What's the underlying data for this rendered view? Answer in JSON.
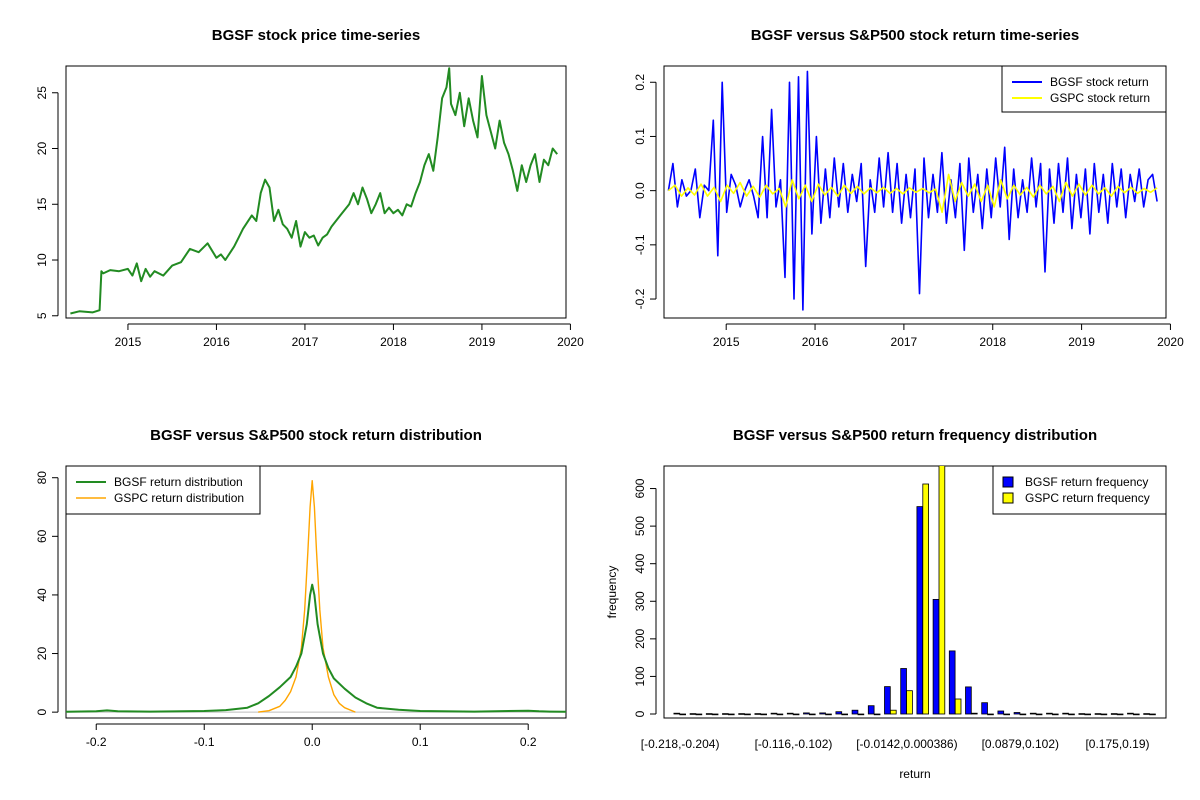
{
  "chart_data": [
    {
      "id": "price",
      "type": "line",
      "title": "BGSF stock price time-series",
      "xlabel": "",
      "ylabel": "",
      "xlim": [
        2014.3,
        2019.95
      ],
      "ylim": [
        4.8,
        27.4
      ],
      "xticks": [
        2015,
        2016,
        2017,
        2018,
        2019,
        2020
      ],
      "xtick_labels": [
        "2015",
        "2016",
        "2017",
        "2018",
        "2019",
        "2020"
      ],
      "yticks": [
        5,
        10,
        15,
        20,
        25
      ],
      "ytick_labels": [
        "5",
        "10",
        "15",
        "20",
        "25"
      ],
      "series": [
        {
          "name": "BGSF",
          "color": "#228B22",
          "x": [
            2014.35,
            2014.45,
            2014.6,
            2014.68,
            2014.7,
            2014.72,
            2014.8,
            2014.9,
            2015.0,
            2015.05,
            2015.1,
            2015.15,
            2015.2,
            2015.25,
            2015.3,
            2015.4,
            2015.5,
            2015.6,
            2015.7,
            2015.8,
            2015.9,
            2016.0,
            2016.05,
            2016.1,
            2016.2,
            2016.25,
            2016.3,
            2016.4,
            2016.45,
            2016.5,
            2016.55,
            2016.6,
            2016.65,
            2016.7,
            2016.75,
            2016.8,
            2016.85,
            2016.9,
            2016.95,
            2017.0,
            2017.05,
            2017.1,
            2017.15,
            2017.2,
            2017.25,
            2017.3,
            2017.4,
            2017.5,
            2017.55,
            2017.6,
            2017.65,
            2017.7,
            2017.75,
            2017.8,
            2017.85,
            2017.9,
            2017.95,
            2018.0,
            2018.05,
            2018.1,
            2018.15,
            2018.2,
            2018.25,
            2018.3,
            2018.35,
            2018.4,
            2018.45,
            2018.5,
            2018.55,
            2018.6,
            2018.63,
            2018.65,
            2018.7,
            2018.75,
            2018.8,
            2018.85,
            2018.9,
            2018.95,
            2019.0,
            2019.05,
            2019.1,
            2019.15,
            2019.2,
            2019.25,
            2019.3,
            2019.35,
            2019.4,
            2019.45,
            2019.5,
            2019.55,
            2019.6,
            2019.65,
            2019.7,
            2019.75,
            2019.8,
            2019.85
          ],
          "values": [
            5.2,
            5.4,
            5.3,
            5.5,
            9.0,
            8.8,
            9.1,
            9.0,
            9.2,
            8.6,
            9.7,
            8.1,
            9.2,
            8.5,
            9.0,
            8.6,
            9.5,
            9.8,
            11.0,
            10.7,
            11.5,
            10.2,
            10.5,
            10.0,
            11.2,
            12.0,
            12.8,
            14.0,
            13.5,
            16.0,
            17.2,
            16.5,
            13.5,
            14.5,
            13.2,
            12.8,
            12.0,
            13.5,
            11.2,
            12.5,
            12.0,
            12.2,
            11.3,
            12.0,
            12.3,
            13.0,
            14.0,
            15.0,
            16.0,
            15.0,
            16.5,
            15.5,
            14.2,
            15.0,
            16.0,
            14.2,
            14.7,
            14.2,
            14.5,
            14.0,
            15.0,
            14.8,
            16.0,
            17.0,
            18.5,
            19.5,
            18.0,
            21.0,
            24.5,
            25.5,
            27.2,
            24.0,
            23.0,
            25.0,
            22.0,
            24.5,
            22.5,
            21.0,
            26.5,
            23.0,
            21.5,
            20.0,
            22.5,
            20.5,
            19.5,
            18.0,
            16.2,
            18.5,
            17.0,
            18.5,
            19.5,
            17.0,
            19.0,
            18.5,
            20.0,
            19.5
          ]
        }
      ]
    },
    {
      "id": "returns",
      "type": "line",
      "title": "BGSF versus S&P500 stock return time-series",
      "xlabel": "",
      "ylabel": "",
      "xlim": [
        2014.3,
        2019.95
      ],
      "ylim": [
        -0.235,
        0.23
      ],
      "xticks": [
        2015,
        2016,
        2017,
        2018,
        2019,
        2020
      ],
      "xtick_labels": [
        "2015",
        "2016",
        "2017",
        "2018",
        "2019",
        "2020"
      ],
      "yticks": [
        -0.2,
        -0.1,
        0.0,
        0.1,
        0.2
      ],
      "ytick_labels": [
        "-0.2",
        "-0.1",
        "0.0",
        "0.1",
        "0.2"
      ],
      "legend_position": "top-right",
      "series": [
        {
          "name": "BGSF stock return",
          "color": "#0000FF",
          "x_start": 2014.35,
          "x_end": 2019.85,
          "values": [
            0.0,
            0.05,
            -0.03,
            0.02,
            -0.01,
            0.0,
            0.04,
            -0.05,
            0.01,
            0.0,
            0.13,
            -0.12,
            0.2,
            -0.04,
            0.03,
            0.01,
            -0.03,
            0.0,
            0.02,
            -0.01,
            -0.05,
            0.1,
            -0.05,
            0.15,
            -0.03,
            0.02,
            -0.16,
            0.2,
            -0.2,
            0.21,
            -0.22,
            0.22,
            -0.08,
            0.1,
            -0.06,
            0.04,
            -0.05,
            0.06,
            -0.03,
            0.05,
            -0.04,
            0.03,
            -0.02,
            0.05,
            -0.14,
            0.02,
            -0.04,
            0.06,
            -0.03,
            0.07,
            -0.04,
            0.05,
            -0.06,
            0.03,
            -0.05,
            0.04,
            -0.19,
            0.06,
            -0.05,
            0.03,
            -0.04,
            0.07,
            -0.06,
            0.02,
            -0.05,
            0.05,
            -0.11,
            0.06,
            -0.04,
            0.03,
            -0.07,
            0.04,
            -0.05,
            0.06,
            -0.03,
            0.08,
            -0.09,
            0.04,
            -0.05,
            0.02,
            -0.04,
            0.06,
            -0.03,
            0.05,
            -0.15,
            0.04,
            -0.06,
            0.05,
            -0.04,
            0.06,
            -0.07,
            0.03,
            -0.05,
            0.04,
            -0.08,
            0.05,
            -0.04,
            0.03,
            -0.06,
            0.05,
            -0.03,
            0.04,
            -0.05,
            0.03,
            -0.02,
            0.04,
            -0.03,
            0.02,
            0.03,
            -0.02
          ]
        },
        {
          "name": "GSPC stock return",
          "color": "#FFFF00",
          "x_start": 2014.35,
          "x_end": 2019.85,
          "values": [
            0.0,
            0.01,
            -0.01,
            0.005,
            -0.008,
            0.012,
            -0.01,
            0.006,
            -0.02,
            0.01,
            -0.005,
            0.015,
            -0.01,
            0.008,
            -0.012,
            0.01,
            -0.006,
            0.004,
            -0.03,
            0.02,
            -0.015,
            0.01,
            -0.02,
            0.012,
            -0.008,
            0.006,
            -0.01,
            0.01,
            -0.005,
            0.008,
            -0.006,
            0.005,
            -0.004,
            0.006,
            -0.005,
            0.004,
            -0.006,
            0.005,
            -0.003,
            0.004,
            -0.004,
            0.003,
            -0.04,
            0.03,
            -0.02,
            0.015,
            -0.01,
            0.012,
            -0.02,
            0.01,
            -0.03,
            0.02,
            -0.015,
            0.01,
            -0.008,
            0.006,
            -0.012,
            0.01,
            -0.006,
            0.008,
            -0.02,
            0.015,
            -0.01,
            0.012,
            -0.008,
            0.01,
            -0.006,
            0.005,
            -0.01,
            0.008,
            -0.004,
            0.006,
            -0.005,
            0.004,
            -0.003,
            0.005
          ]
        }
      ]
    },
    {
      "id": "density",
      "type": "line",
      "title": "BGSF versus S&P500 stock return distribution",
      "xlabel": "",
      "ylabel": "",
      "xlim": [
        -0.228,
        0.235
      ],
      "ylim": [
        -2,
        84
      ],
      "xticks": [
        -0.2,
        -0.1,
        0.0,
        0.1,
        0.2
      ],
      "xtick_labels": [
        "-0.2",
        "-0.1",
        "0.0",
        "0.1",
        "0.2"
      ],
      "yticks": [
        0,
        20,
        40,
        60,
        80
      ],
      "ytick_labels": [
        "0",
        "20",
        "40",
        "60",
        "80"
      ],
      "legend_position": "top-left",
      "series": [
        {
          "name": "BGSF return distribution",
          "color": "#228B22",
          "x": [
            -0.228,
            -0.2,
            -0.19,
            -0.18,
            -0.15,
            -0.12,
            -0.1,
            -0.08,
            -0.06,
            -0.05,
            -0.04,
            -0.03,
            -0.02,
            -0.015,
            -0.01,
            -0.005,
            -0.002,
            0.0,
            0.002,
            0.005,
            0.01,
            0.015,
            0.02,
            0.03,
            0.04,
            0.05,
            0.06,
            0.08,
            0.1,
            0.12,
            0.15,
            0.2,
            0.21,
            0.22,
            0.235
          ],
          "values": [
            0.1,
            0.3,
            0.6,
            0.3,
            0.2,
            0.3,
            0.4,
            0.7,
            1.5,
            3.0,
            5.5,
            8.5,
            12.0,
            15.5,
            20.0,
            30.0,
            40.0,
            43.5,
            40.0,
            30.0,
            20.0,
            15.0,
            11.5,
            8.0,
            5.0,
            3.0,
            1.5,
            0.8,
            0.4,
            0.3,
            0.2,
            0.5,
            0.3,
            0.2,
            0.1
          ]
        },
        {
          "name": "GSPC return distribution",
          "color": "#FFA500",
          "x": [
            -0.05,
            -0.04,
            -0.03,
            -0.025,
            -0.02,
            -0.015,
            -0.01,
            -0.007,
            -0.004,
            -0.002,
            0.0,
            0.002,
            0.004,
            0.007,
            0.01,
            0.015,
            0.02,
            0.025,
            0.03,
            0.04
          ],
          "values": [
            0.0,
            0.5,
            2.0,
            4.0,
            7.0,
            12.0,
            22.0,
            35.0,
            55.0,
            70.0,
            79.0,
            70.0,
            55.0,
            35.0,
            22.0,
            12.0,
            6.0,
            3.0,
            1.5,
            0.0
          ]
        }
      ]
    },
    {
      "id": "hist",
      "type": "bar",
      "title": "BGSF versus S&P500 return frequency distribution",
      "xlabel": "return",
      "ylabel": "frequency",
      "ylim": [
        0,
        660
      ],
      "yticks": [
        0,
        100,
        200,
        300,
        400,
        500,
        600
      ],
      "ytick_labels": [
        "0",
        "100",
        "200",
        "300",
        "400",
        "500",
        "600"
      ],
      "xtick_labels": [
        "[-0.218,-0.204)",
        "[-0.116,-0.102)",
        "[-0.0142,0.000386)",
        "[0.0879,0.102)",
        "[0.175,0.19)"
      ],
      "xtick_bins": [
        0,
        7,
        14,
        21,
        27
      ],
      "bin_count": 30,
      "legend_position": "top-right",
      "series": [
        {
          "name": "BGSF return frequency",
          "color": "#0000FF",
          "values": [
            2,
            1,
            1,
            1,
            1,
            1,
            2,
            2,
            3,
            3,
            6,
            10,
            22,
            73,
            121,
            552,
            305,
            168,
            72,
            30,
            8,
            4,
            2,
            2,
            2,
            1,
            1,
            1,
            2,
            1
          ]
        },
        {
          "name": "GSPC return frequency",
          "color": "#FFFF00",
          "values": [
            0,
            0,
            0,
            0,
            0,
            0,
            0,
            0,
            0,
            0,
            0,
            0,
            0,
            10,
            62,
            612,
            670,
            40,
            2,
            0,
            0,
            0,
            0,
            0,
            0,
            0,
            0,
            0,
            0,
            0
          ]
        }
      ]
    }
  ]
}
